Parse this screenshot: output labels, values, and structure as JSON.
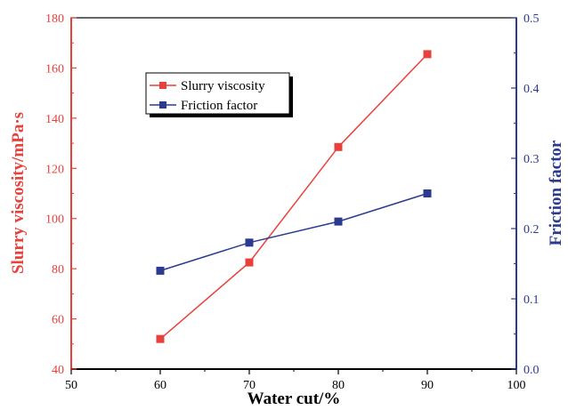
{
  "chart_data": {
    "type": "line",
    "xlabel": "Water cut/%",
    "ylabel_left": "Slurry viscosity/mPa·s",
    "ylabel_right": "Friction factor",
    "xlim": [
      50,
      100
    ],
    "ylim_left": [
      40,
      180
    ],
    "ylim_right": [
      0.0,
      0.5
    ],
    "x_ticks": [
      "50",
      "60",
      "70",
      "80",
      "90",
      "100"
    ],
    "y_left_ticks": [
      "40",
      "60",
      "80",
      "100",
      "120",
      "140",
      "160",
      "180"
    ],
    "y_right_ticks": [
      "0.0",
      "0.1",
      "0.2",
      "0.3",
      "0.4",
      "0.5"
    ],
    "grid": false,
    "legend_position": "upper-left-center",
    "x": [
      60,
      70,
      80,
      90
    ],
    "series": [
      {
        "name": "Slurry viscosity",
        "axis": "left",
        "color": "#e8413c",
        "marker": "square",
        "values": [
          52,
          82.5,
          128.5,
          165.5
        ]
      },
      {
        "name": "Friction factor",
        "axis": "right",
        "color": "#2b3a8f",
        "marker": "square",
        "values": [
          0.14,
          0.18,
          0.21,
          0.25
        ]
      }
    ]
  }
}
